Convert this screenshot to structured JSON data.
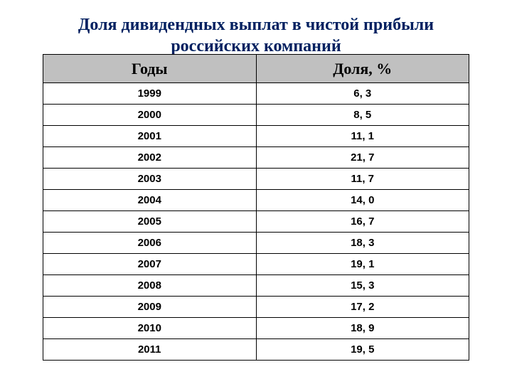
{
  "title": "Доля дивидендных выплат в чистой прибыли российских компаний",
  "table": {
    "columns": [
      "Годы",
      "Доля, %"
    ],
    "rows": [
      [
        "1999",
        "6, 3"
      ],
      [
        "2000",
        "8, 5"
      ],
      [
        "2001",
        "11, 1"
      ],
      [
        "2002",
        "21, 7"
      ],
      [
        "2003",
        "11, 7"
      ],
      [
        "2004",
        "14, 0"
      ],
      [
        "2005",
        "16, 7"
      ],
      [
        "2006",
        "18, 3"
      ],
      [
        "2007",
        "19, 1"
      ],
      [
        "2008",
        "15, 3"
      ],
      [
        "2009",
        "17, 2"
      ],
      [
        "2010",
        "18, 9"
      ],
      [
        "2011",
        "19, 5"
      ]
    ],
    "header_bg": "#c0c0c0",
    "border_color": "#000000",
    "title_color": "#002060",
    "title_fontsize": 24,
    "header_fontsize": 22,
    "cell_fontsize": 15
  }
}
